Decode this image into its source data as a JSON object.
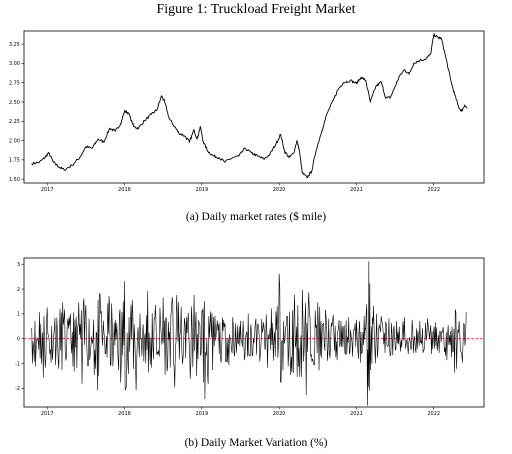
{
  "figure": {
    "title": "Figure 1: Truckload Freight Market",
    "caption_a": "(a) Daily market rates ($ mile)",
    "caption_b": "(b) Daily Market Variation (%)"
  },
  "chart_data": [
    {
      "type": "line",
      "title": "",
      "xlabel": "",
      "ylabel": "",
      "x_ticks": [
        "2017",
        "2018",
        "2019",
        "2020",
        "2021",
        "2022"
      ],
      "y_ticks": [
        "1.50",
        "1.75",
        "2.00",
        "2.25",
        "2.50",
        "2.75",
        "3.00",
        "3.25"
      ],
      "xlim": [
        2016.7,
        2022.65
      ],
      "ylim": [
        1.45,
        3.42
      ],
      "grid": false,
      "series": [
        {
          "color": "#000000",
          "points": [
            [
              2016.8,
              1.7
            ],
            [
              2016.9,
              1.72
            ],
            [
              2016.97,
              1.78
            ],
            [
              2017.02,
              1.84
            ],
            [
              2017.08,
              1.72
            ],
            [
              2017.15,
              1.66
            ],
            [
              2017.22,
              1.62
            ],
            [
              2017.32,
              1.68
            ],
            [
              2017.42,
              1.78
            ],
            [
              2017.5,
              1.92
            ],
            [
              2017.58,
              1.9
            ],
            [
              2017.66,
              2.02
            ],
            [
              2017.73,
              1.98
            ],
            [
              2017.81,
              2.16
            ],
            [
              2017.88,
              2.12
            ],
            [
              2017.95,
              2.22
            ],
            [
              2018.0,
              2.38
            ],
            [
              2018.05,
              2.36
            ],
            [
              2018.12,
              2.18
            ],
            [
              2018.18,
              2.16
            ],
            [
              2018.26,
              2.26
            ],
            [
              2018.35,
              2.34
            ],
            [
              2018.42,
              2.4
            ],
            [
              2018.48,
              2.58
            ],
            [
              2018.52,
              2.5
            ],
            [
              2018.58,
              2.28
            ],
            [
              2018.65,
              2.18
            ],
            [
              2018.7,
              2.1
            ],
            [
              2018.78,
              2.06
            ],
            [
              2018.84,
              1.98
            ],
            [
              2018.9,
              2.14
            ],
            [
              2018.94,
              2.02
            ],
            [
              2018.98,
              2.18
            ],
            [
              2019.02,
              1.98
            ],
            [
              2019.08,
              1.86
            ],
            [
              2019.15,
              1.8
            ],
            [
              2019.22,
              1.78
            ],
            [
              2019.3,
              1.72
            ],
            [
              2019.4,
              1.78
            ],
            [
              2019.48,
              1.8
            ],
            [
              2019.56,
              1.9
            ],
            [
              2019.64,
              1.84
            ],
            [
              2019.72,
              1.8
            ],
            [
              2019.8,
              1.76
            ],
            [
              2019.88,
              1.82
            ],
            [
              2019.96,
              1.96
            ],
            [
              2020.02,
              2.08
            ],
            [
              2020.07,
              1.86
            ],
            [
              2020.13,
              1.78
            ],
            [
              2020.19,
              1.84
            ],
            [
              2020.23,
              2.0
            ],
            [
              2020.26,
              1.88
            ],
            [
              2020.3,
              1.58
            ],
            [
              2020.36,
              1.52
            ],
            [
              2020.42,
              1.6
            ],
            [
              2020.48,
              1.88
            ],
            [
              2020.55,
              2.12
            ],
            [
              2020.62,
              2.35
            ],
            [
              2020.7,
              2.52
            ],
            [
              2020.76,
              2.66
            ],
            [
              2020.83,
              2.75
            ],
            [
              2020.92,
              2.78
            ],
            [
              2021.0,
              2.74
            ],
            [
              2021.06,
              2.82
            ],
            [
              2021.12,
              2.78
            ],
            [
              2021.18,
              2.5
            ],
            [
              2021.25,
              2.7
            ],
            [
              2021.32,
              2.76
            ],
            [
              2021.38,
              2.55
            ],
            [
              2021.44,
              2.56
            ],
            [
              2021.5,
              2.7
            ],
            [
              2021.55,
              2.82
            ],
            [
              2021.62,
              2.92
            ],
            [
              2021.68,
              2.86
            ],
            [
              2021.74,
              3.0
            ],
            [
              2021.82,
              3.04
            ],
            [
              2021.9,
              3.06
            ],
            [
              2021.96,
              3.12
            ],
            [
              2022.0,
              3.37
            ],
            [
              2022.05,
              3.34
            ],
            [
              2022.1,
              3.32
            ],
            [
              2022.16,
              3.06
            ],
            [
              2022.22,
              2.78
            ],
            [
              2022.27,
              2.6
            ],
            [
              2022.32,
              2.44
            ],
            [
              2022.36,
              2.38
            ],
            [
              2022.4,
              2.46
            ],
            [
              2022.43,
              2.42
            ]
          ]
        }
      ]
    },
    {
      "type": "line",
      "title": "",
      "xlabel": "",
      "ylabel": "",
      "x_ticks": [
        "2017",
        "2018",
        "2019",
        "2020",
        "2021",
        "2022"
      ],
      "y_ticks": [
        "3",
        "2",
        "1",
        "0",
        "-1",
        "-2"
      ],
      "xlim": [
        2016.7,
        2022.65
      ],
      "ylim": [
        -2.75,
        3.25
      ],
      "grid": false,
      "baseline": {
        "y": 0,
        "color": "#e8191b",
        "style": "dashed"
      },
      "series": [
        {
          "color": "#000000",
          "points": [
            [
              2016.8,
              0.42
            ],
            [
              2016.85,
              -1.1
            ],
            [
              2016.9,
              1.05
            ],
            [
              2016.95,
              -1.55
            ],
            [
              2017.0,
              1.25
            ],
            [
              2017.05,
              -0.95
            ],
            [
              2017.1,
              0.82
            ],
            [
              2017.15,
              -1.2
            ],
            [
              2017.2,
              1.45
            ],
            [
              2017.25,
              -0.7
            ],
            [
              2017.3,
              0.98
            ],
            [
              2017.35,
              -1.3
            ],
            [
              2017.4,
              0.55
            ],
            [
              2017.45,
              -1.8
            ],
            [
              2017.5,
              1.35
            ],
            [
              2017.55,
              -0.85
            ],
            [
              2017.6,
              0.75
            ],
            [
              2017.65,
              -2.05
            ],
            [
              2017.7,
              1.1
            ],
            [
              2017.75,
              -0.6
            ],
            [
              2017.8,
              1.7
            ],
            [
              2017.85,
              -1.1
            ],
            [
              2017.9,
              0.62
            ],
            [
              2017.95,
              -1.75
            ],
            [
              2018.0,
              2.3
            ],
            [
              2018.05,
              -1.4
            ],
            [
              2018.1,
              1.55
            ],
            [
              2018.15,
              -2.05
            ],
            [
              2018.2,
              1.0
            ],
            [
              2018.25,
              -0.9
            ],
            [
              2018.3,
              1.9
            ],
            [
              2018.35,
              -1.15
            ],
            [
              2018.4,
              1.35
            ],
            [
              2018.45,
              -0.7
            ],
            [
              2018.5,
              1.65
            ],
            [
              2018.55,
              -1.3
            ],
            [
              2018.6,
              0.95
            ],
            [
              2018.65,
              -1.95
            ],
            [
              2018.7,
              1.45
            ],
            [
              2018.75,
              -1.0
            ],
            [
              2018.8,
              0.85
            ],
            [
              2018.85,
              -1.6
            ],
            [
              2018.9,
              1.75
            ],
            [
              2018.95,
              -0.8
            ],
            [
              2019.0,
              1.1
            ],
            [
              2019.04,
              -2.42
            ],
            [
              2019.09,
              0.9
            ],
            [
              2019.14,
              -1.25
            ],
            [
              2019.2,
              0.72
            ],
            [
              2019.25,
              -0.95
            ],
            [
              2019.3,
              0.6
            ],
            [
              2019.35,
              -1.05
            ],
            [
              2019.4,
              0.85
            ],
            [
              2019.45,
              -0.55
            ],
            [
              2019.5,
              0.7
            ],
            [
              2019.55,
              -0.85
            ],
            [
              2019.6,
              1.0
            ],
            [
              2019.65,
              -0.65
            ],
            [
              2019.7,
              0.8
            ],
            [
              2019.75,
              -0.9
            ],
            [
              2019.8,
              0.65
            ],
            [
              2019.85,
              -1.15
            ],
            [
              2019.9,
              1.2
            ],
            [
              2019.95,
              -0.7
            ],
            [
              2020.0,
              2.6
            ],
            [
              2020.05,
              -1.25
            ],
            [
              2020.1,
              0.9
            ],
            [
              2020.15,
              -1.45
            ],
            [
              2020.2,
              1.75
            ],
            [
              2020.25,
              -1.1
            ],
            [
              2020.3,
              1.95
            ],
            [
              2020.35,
              -2.25
            ],
            [
              2020.4,
              0.85
            ],
            [
              2020.45,
              -1.05
            ],
            [
              2020.5,
              1.45
            ],
            [
              2020.55,
              -0.75
            ],
            [
              2020.6,
              1.15
            ],
            [
              2020.65,
              -0.6
            ],
            [
              2020.7,
              0.95
            ],
            [
              2020.75,
              -0.85
            ],
            [
              2020.8,
              0.7
            ],
            [
              2020.85,
              -0.55
            ],
            [
              2020.9,
              0.85
            ],
            [
              2020.95,
              -0.7
            ],
            [
              2021.0,
              0.75
            ],
            [
              2021.05,
              -0.95
            ],
            [
              2021.1,
              0.9
            ],
            [
              2021.14,
              -1.65
            ],
            [
              2021.16,
              3.1
            ],
            [
              2021.18,
              -1.25
            ],
            [
              2021.22,
              1.3
            ],
            [
              2021.27,
              -0.75
            ],
            [
              2021.32,
              0.9
            ],
            [
              2021.37,
              -0.55
            ],
            [
              2021.42,
              0.8
            ],
            [
              2021.47,
              -0.65
            ],
            [
              2021.52,
              0.7
            ],
            [
              2021.57,
              -0.5
            ],
            [
              2021.62,
              0.85
            ],
            [
              2021.67,
              -0.6
            ],
            [
              2021.72,
              0.75
            ],
            [
              2021.77,
              -0.55
            ],
            [
              2021.82,
              0.7
            ],
            [
              2021.87,
              -0.45
            ],
            [
              2021.92,
              0.8
            ],
            [
              2021.97,
              -0.6
            ],
            [
              2022.02,
              0.65
            ],
            [
              2022.07,
              -0.55
            ],
            [
              2022.12,
              0.45
            ],
            [
              2022.17,
              -0.85
            ],
            [
              2022.22,
              0.3
            ],
            [
              2022.27,
              -1.35
            ],
            [
              2022.32,
              0.25
            ],
            [
              2022.37,
              -0.95
            ],
            [
              2022.42,
              1.05
            ]
          ]
        }
      ]
    }
  ]
}
